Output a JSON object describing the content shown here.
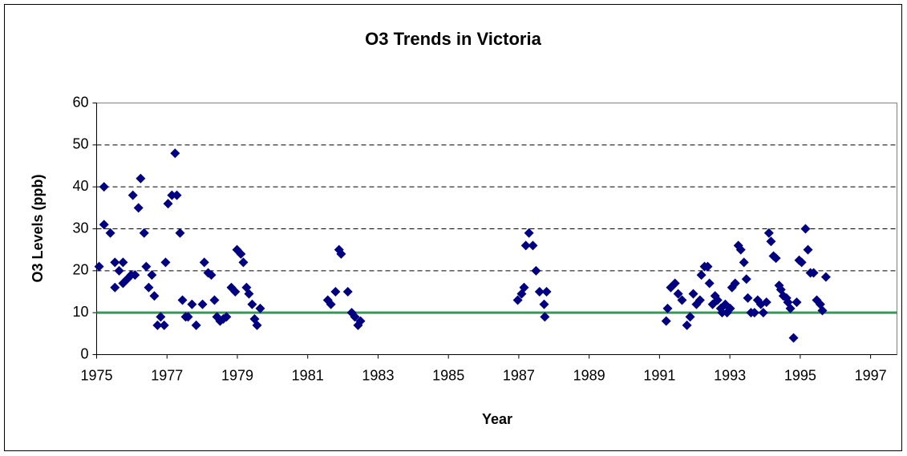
{
  "chart_data": {
    "type": "scatter",
    "title": "O3 Trends in Victoria",
    "x_label": "Year",
    "y_label": "O3 Levels (ppb)",
    "color": "#000080",
    "threshold": 10,
    "threshold_color": "#339955",
    "grid": true,
    "xlim": [
      1975,
      1997.75
    ],
    "ylim": [
      0,
      60
    ],
    "xticks": [
      1975,
      1977,
      1979,
      1981,
      1983,
      1985,
      1987,
      1989,
      1991,
      1993,
      1995,
      1997
    ],
    "yticks": [
      0,
      10,
      20,
      30,
      40,
      50,
      60
    ],
    "x": [
      1975.07,
      1975.21,
      1975.21,
      1975.39,
      1975.52,
      1975.52,
      1975.64,
      1975.75,
      1975.75,
      1975.87,
      1975.98,
      1976.09,
      1976.03,
      1976.19,
      1976.25,
      1976.35,
      1976.41,
      1976.48,
      1976.57,
      1976.64,
      1976.73,
      1976.82,
      1976.92,
      1976.96,
      1977.03,
      1977.14,
      1977.23,
      1977.28,
      1977.37,
      1977.44,
      1977.53,
      1977.6,
      1977.71,
      1977.83,
      1978.01,
      1978.06,
      1978.17,
      1978.26,
      1978.35,
      1978.42,
      1978.51,
      1978.6,
      1978.69,
      1978.83,
      1978.94,
      1978.99,
      1979.1,
      1979.17,
      1979.26,
      1979.33,
      1979.42,
      1979.49,
      1979.56,
      1979.65,
      1981.57,
      1981.66,
      1981.79,
      1981.89,
      1981.95,
      1982.14,
      1982.25,
      1982.34,
      1982.43,
      1982.5,
      1986.97,
      1987.08,
      1987.15,
      1987.2,
      1987.29,
      1987.4,
      1987.49,
      1987.59,
      1987.72,
      1987.74,
      1987.79,
      1991.19,
      1991.23,
      1991.32,
      1991.44,
      1991.53,
      1991.64,
      1991.78,
      1991.87,
      1991.96,
      1992.05,
      1992.15,
      1992.19,
      1992.28,
      1992.37,
      1992.42,
      1992.51,
      1992.58,
      1992.65,
      1992.74,
      1992.78,
      1992.87,
      1992.92,
      1993.01,
      1993.06,
      1993.15,
      1993.24,
      1993.31,
      1993.4,
      1993.47,
      1993.51,
      1993.6,
      1993.7,
      1993.79,
      1993.88,
      1993.95,
      1994.04,
      1994.11,
      1994.17,
      1994.24,
      1994.31,
      1994.4,
      1994.45,
      1994.52,
      1994.61,
      1994.65,
      1994.72,
      1994.81,
      1994.9,
      1994.97,
      1995.04,
      1995.15,
      1995.22,
      1995.29,
      1995.38,
      1995.47,
      1995.57,
      1995.63,
      1995.73
    ],
    "values": [
      21,
      31,
      40,
      29,
      22,
      16,
      20,
      22,
      17,
      18,
      19,
      19,
      38,
      35,
      42,
      29,
      21,
      16,
      19,
      14,
      7,
      9,
      7,
      22,
      36,
      38,
      48,
      38,
      29,
      13,
      9,
      9,
      12,
      7,
      12,
      22,
      19.5,
      19,
      13,
      9,
      8,
      8.5,
      9,
      16,
      15,
      25,
      24,
      22,
      16,
      14.5,
      12,
      8.5,
      7,
      11,
      13,
      12,
      15,
      25,
      24,
      15,
      10,
      9,
      7,
      8,
      13,
      14.5,
      16,
      26,
      29,
      26,
      20,
      15,
      12,
      9,
      15,
      8,
      11,
      16,
      17,
      14.5,
      13,
      7,
      9,
      14.5,
      12,
      13,
      19,
      21,
      21,
      17,
      12,
      14,
      13,
      11,
      10,
      12,
      10,
      11,
      16,
      17,
      26,
      25,
      22,
      18,
      13.5,
      10,
      10,
      13,
      12,
      10,
      12.5,
      29,
      27,
      23.5,
      23,
      16.5,
      15.5,
      14,
      13.5,
      12.5,
      11,
      4,
      12.5,
      22.5,
      22,
      30,
      25,
      19.5,
      19.5,
      13,
      12,
      10.5,
      18.5
    ]
  }
}
